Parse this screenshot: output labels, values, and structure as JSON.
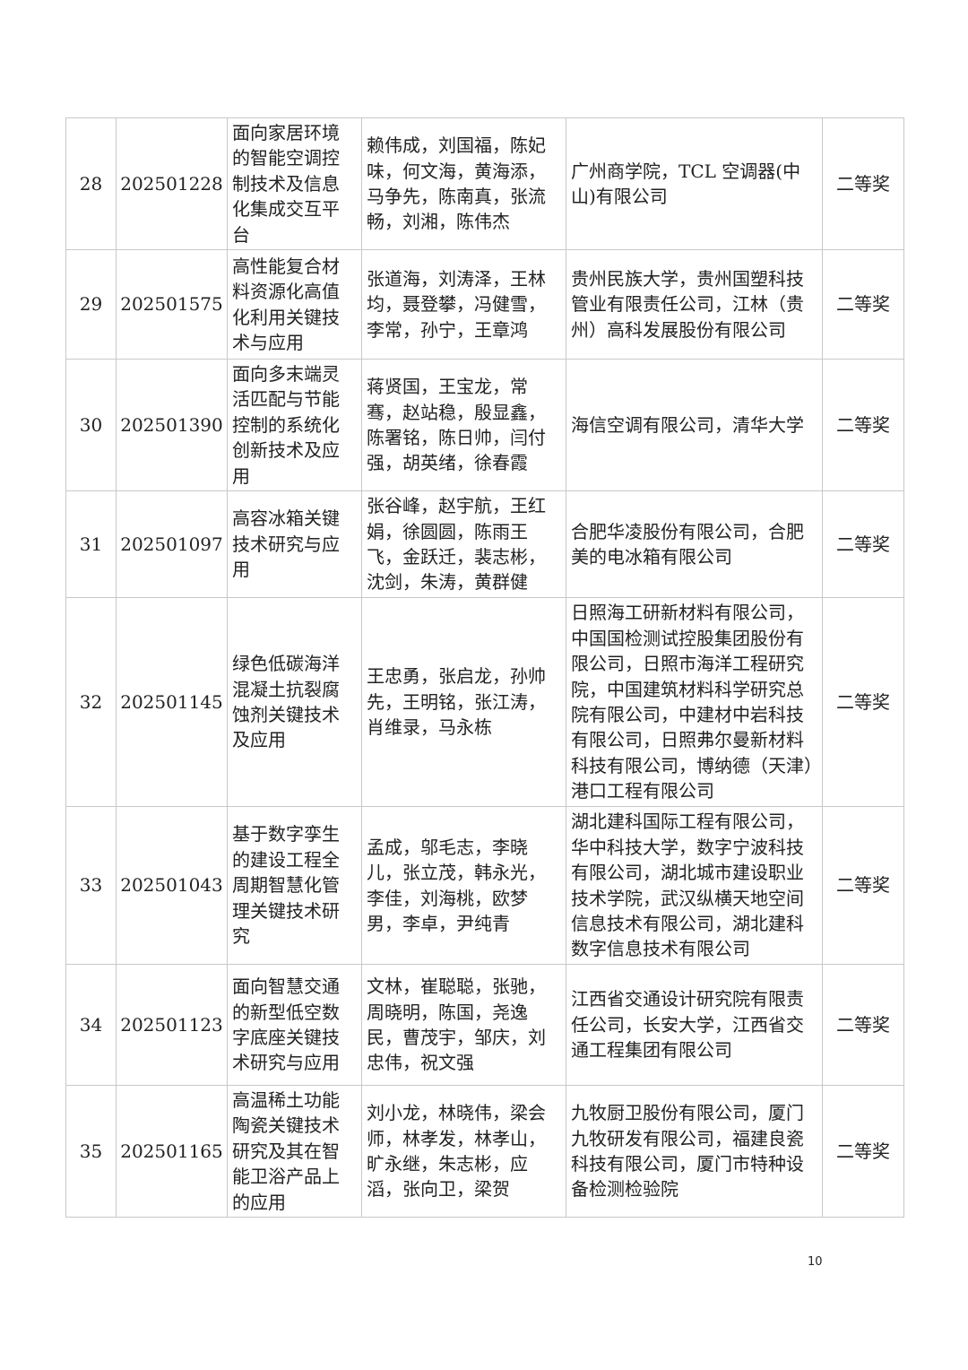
{
  "rows": [
    {
      "no": "28",
      "code": "202501228",
      "title": "面向家居环境的智能空调控制技术及信息化集成交互平台",
      "people": "赖伟成，刘国福，陈妃味，何文海，黄海添，马争先，陈南真，张流畅，刘湘，陈伟杰",
      "orgs": "广州商学院，TCL 空调器(中山)有限公司",
      "award": "二等奖"
    },
    {
      "no": "29",
      "code": "202501575",
      "title": "高性能复合材料资源化高值化利用关键技术与应用",
      "people": "张道海，刘涛泽，王林均，聂登攀，冯健雪，李常，孙宁，王章鸿",
      "orgs": "贵州民族大学，贵州国塑科技管业有限责任公司，江林（贵州）高科发展股份有限公司",
      "award": "二等奖"
    },
    {
      "no": "30",
      "code": "202501390",
      "title": "面向多末端灵活匹配与节能控制的系统化创新技术及应用",
      "people": "蒋贤国，王宝龙，常骞，赵站稳，殷显鑫，陈署铭，陈日帅，闫付强，胡英绪，徐春霞",
      "orgs": "海信空调有限公司，清华大学",
      "award": "二等奖"
    },
    {
      "no": "31",
      "code": "202501097",
      "title": "高容冰箱关键技术研究与应用",
      "people": "张谷峰，赵宇航，王红娟，徐圆圆，陈雨王飞，金跃迁，裴志彬，沈剑，朱涛，黄群健",
      "orgs": "合肥华凌股份有限公司，合肥美的电冰箱有限公司",
      "award": "二等奖"
    },
    {
      "no": "32",
      "code": "202501145",
      "title": "绿色低碳海洋混凝土抗裂腐蚀剂关键技术及应用",
      "people": "王忠勇，张启龙，孙帅先，王明铭，张江涛，肖维录，马永栋",
      "orgs": "日照海工研新材料有限公司，中国国检测试控股集团股份有限公司，日照市海洋工程研究院，中国建筑材料科学研究总院有限公司，中建材中岩科技有限公司，日照弗尔曼新材料科技有限公司，博纳德（天津）港口工程有限公司",
      "award": "二等奖"
    },
    {
      "no": "33",
      "code": "202501043",
      "title": "基于数字孪生的建设工程全周期智慧化管理关键技术研究",
      "people": "孟成，邬毛志，李晓儿，张立茂，韩永光，李佳，刘海桃，欧梦男，李卓，尹纯青",
      "orgs": "湖北建科国际工程有限公司，华中科技大学，数字宁波科技有限公司，湖北城市建设职业技术学院，武汉纵横天地空间信息技术有限公司，湖北建科数字信息技术有限公司",
      "award": "二等奖"
    },
    {
      "no": "34",
      "code": "202501123",
      "title": "面向智慧交通的新型低空数字底座关键技术研究与应用",
      "people": "文林，崔聪聪，张驰，周晓明，陈国，尧逸民，曹茂宇，邹庆，刘忠伟，祝文强",
      "orgs": "江西省交通设计研究院有限责任公司，长安大学，江西省交通工程集团有限公司",
      "award": "二等奖"
    },
    {
      "no": "35",
      "code": "202501165",
      "title": "高温稀土功能陶瓷关键技术研究及其在智能卫浴产品上的应用",
      "people": "刘小龙，林晓伟，梁会师，林孝发，林孝山，旷永继，朱志彬，应滔，张向卫，梁贺",
      "orgs": "九牧厨卫股份有限公司，厦门九牧研发有限公司，福建良瓷科技有限公司，厦门市特种设备检测检验院",
      "award": "二等奖"
    }
  ],
  "page_number": "10"
}
